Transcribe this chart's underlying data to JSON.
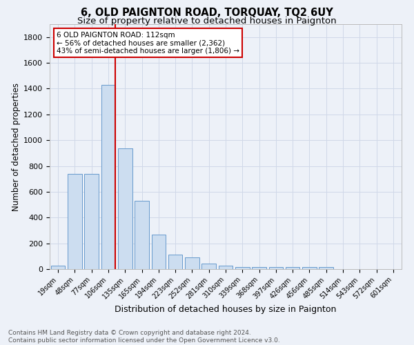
{
  "title1": "6, OLD PAIGNTON ROAD, TORQUAY, TQ2 6UY",
  "title2": "Size of property relative to detached houses in Paignton",
  "xlabel": "Distribution of detached houses by size in Paignton",
  "ylabel": "Number of detached properties",
  "categories": [
    "19sqm",
    "48sqm",
    "77sqm",
    "106sqm",
    "135sqm",
    "165sqm",
    "194sqm",
    "223sqm",
    "252sqm",
    "281sqm",
    "310sqm",
    "339sqm",
    "368sqm",
    "397sqm",
    "426sqm",
    "456sqm",
    "485sqm",
    "514sqm",
    "543sqm",
    "572sqm",
    "601sqm"
  ],
  "values": [
    25,
    738,
    738,
    1430,
    935,
    530,
    265,
    110,
    93,
    43,
    25,
    15,
    14,
    14,
    14,
    14,
    14,
    0,
    0,
    0,
    0
  ],
  "bar_color": "#ccddf0",
  "bar_edge_color": "#6699cc",
  "red_line_index": 3,
  "annotation_text": "6 OLD PAIGNTON ROAD: 112sqm\n← 56% of detached houses are smaller (2,362)\n43% of semi-detached houses are larger (1,806) →",
  "annotation_box_facecolor": "#ffffff",
  "annotation_box_edgecolor": "#cc0000",
  "footer_text": "Contains HM Land Registry data © Crown copyright and database right 2024.\nContains public sector information licensed under the Open Government Licence v3.0.",
  "ylim": [
    0,
    1900
  ],
  "yticks": [
    0,
    200,
    400,
    600,
    800,
    1000,
    1200,
    1400,
    1600,
    1800
  ],
  "grid_color": "#d0d8e8",
  "bg_color": "#edf1f8",
  "title1_fontsize": 10.5,
  "title2_fontsize": 9.5,
  "tick_fontsize": 7,
  "ylabel_fontsize": 8.5,
  "xlabel_fontsize": 9,
  "annotation_fontsize": 7.5,
  "footer_fontsize": 6.5
}
